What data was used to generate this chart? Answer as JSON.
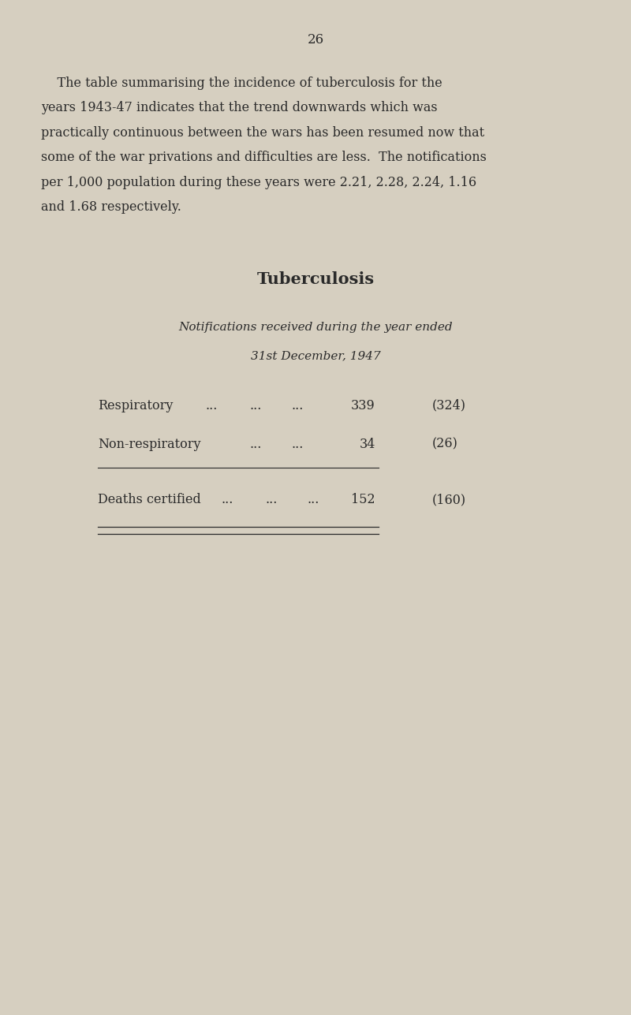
{
  "page_number": "26",
  "background_color": "#d6cfc0",
  "text_color": "#2a2a2a",
  "section_title": "Tuberculosis",
  "subtitle_line1": "Notifications received during the year ended",
  "subtitle_line2": "31st December, 1947",
  "para_lines": [
    "    The table summarising the incidence of tuberculosis for the",
    "years 1943-47 indicates that the trend downwards which was",
    "practically continuous between the wars has been resumed now that",
    "some of the war privations and difficulties are less.  The notifications",
    "per 1,000 population during these years were 2.21, 2.28, 2.24, 1.16",
    "and 1.68 respectively."
  ],
  "title_fontsize": 15,
  "body_fontsize": 11.5,
  "table_fontsize": 11.5,
  "subtitle_fontsize": 11.0,
  "page_num_fontsize": 12
}
